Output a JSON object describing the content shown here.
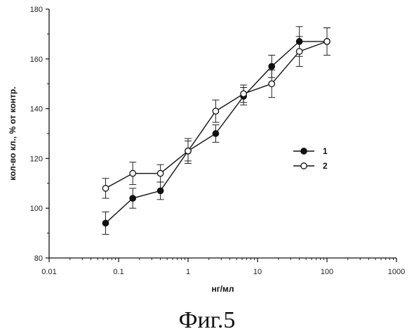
{
  "caption": "Фиг.5",
  "chart_data": {
    "type": "line",
    "xlabel": "нг/мл",
    "ylabel": "кол-во кл., % от контр.",
    "xscale": "log",
    "xlim": [
      0.01,
      1000
    ],
    "ylim": [
      80,
      180
    ],
    "xticks": [
      0.01,
      0.1,
      1,
      10,
      100,
      1000
    ],
    "xtick_labels": [
      "0.01",
      "0.1",
      "1",
      "10",
      "100",
      "1000"
    ],
    "yticks": [
      80,
      100,
      120,
      140,
      160,
      180
    ],
    "ytick_labels": [
      "80",
      "100",
      "120",
      "140",
      "160",
      "180"
    ],
    "grid": false,
    "legend_position": "right",
    "series": [
      {
        "name": "1",
        "marker": "filled-circle",
        "color": "#111111",
        "points": [
          {
            "x": 0.065,
            "y": 94,
            "err": 4.5
          },
          {
            "x": 0.16,
            "y": 104,
            "err": 4
          },
          {
            "x": 0.4,
            "y": 107,
            "err": 3.5
          },
          {
            "x": 1.0,
            "y": 123,
            "err": 4
          },
          {
            "x": 2.5,
            "y": 130,
            "err": 3.5
          },
          {
            "x": 6.3,
            "y": 145,
            "err": 3.5
          },
          {
            "x": 16,
            "y": 157,
            "err": 4.5
          },
          {
            "x": 40,
            "y": 167,
            "err": 6
          },
          {
            "x": 100,
            "y": 167,
            "err": 5.5
          }
        ]
      },
      {
        "name": "2",
        "marker": "open-circle",
        "color": "#111111",
        "points": [
          {
            "x": 0.065,
            "y": 108,
            "err": 4
          },
          {
            "x": 0.16,
            "y": 114,
            "err": 4.5
          },
          {
            "x": 0.4,
            "y": 114,
            "err": 3.5
          },
          {
            "x": 1.0,
            "y": 123,
            "err": 5
          },
          {
            "x": 2.5,
            "y": 139,
            "err": 4.5
          },
          {
            "x": 6.3,
            "y": 146,
            "err": 3.5
          },
          {
            "x": 16,
            "y": 150,
            "err": 5.5
          },
          {
            "x": 40,
            "y": 163,
            "err": 6
          },
          {
            "x": 100,
            "y": 167,
            "err": 5.5
          }
        ]
      }
    ]
  }
}
